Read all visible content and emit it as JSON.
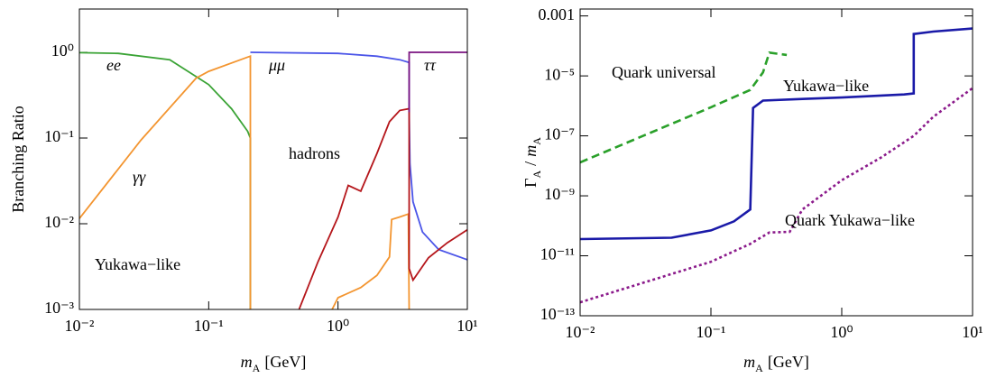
{
  "chart_data": [
    {
      "type": "line",
      "log_x": true,
      "log_y": true,
      "ylabel": "Branching Ratio",
      "xlabel": [
        "m",
        "A",
        "[GeV]"
      ],
      "annotation": "Yukawa−like",
      "xlim": [
        0.01,
        10
      ],
      "ylim": [
        0.001,
        3.2
      ],
      "xticks": [
        {
          "value": 0.01,
          "label": "10⁻²"
        },
        {
          "value": 0.1,
          "label": "10⁻¹"
        },
        {
          "value": 1,
          "label": "10⁰"
        },
        {
          "value": 10,
          "label": "10¹"
        }
      ],
      "yticks": [
        {
          "value": 0.001,
          "label": "10⁻³"
        },
        {
          "value": 0.01,
          "label": "10⁻²"
        },
        {
          "value": 0.1,
          "label": "10⁻¹"
        },
        {
          "value": 1,
          "label": "10⁰"
        }
      ],
      "series": [
        {
          "name": "ee",
          "color": "#3aa335",
          "style": "solid",
          "x": [
            0.01,
            0.02,
            0.05,
            0.1,
            0.15,
            0.2,
            0.21,
            0.21
          ],
          "values": [
            0.99,
            0.97,
            0.82,
            0.42,
            0.22,
            0.12,
            0.1,
            0.001
          ]
        },
        {
          "name": "γγ",
          "color": "#f39530",
          "style": "solid",
          "x": [
            0.01,
            0.03,
            0.08,
            0.1,
            0.2,
            0.21,
            0.21,
            0.5,
            0.9,
            1.0,
            1.5,
            2.0,
            2.5,
            2.6,
            3.0,
            3.5,
            3.55
          ],
          "values": [
            0.0115,
            0.095,
            0.5,
            0.6,
            0.88,
            0.9,
            0.001,
            null,
            0.001,
            0.00137,
            0.0018,
            0.0025,
            0.0041,
            0.0112,
            0.012,
            0.013,
            0.001
          ]
        },
        {
          "name": "μμ",
          "color": "#4b55e8",
          "style": "solid",
          "x": [
            0.21,
            1,
            2,
            3,
            3.55,
            3.55,
            3.6,
            3.8,
            4.5,
            6,
            10
          ],
          "values": [
            1,
            0.97,
            0.9,
            0.82,
            0.76,
            0.2,
            0.05,
            0.018,
            0.008,
            0.005,
            0.0038
          ]
        },
        {
          "name": "hadrons",
          "color": "#b5161b",
          "style": "solid",
          "x": [
            0.5,
            0.7,
            1,
            1.2,
            1.5,
            2,
            2.5,
            3,
            3.55,
            3.55,
            3.8,
            5,
            7,
            10
          ],
          "values": [
            0.001,
            0.0036,
            0.012,
            0.028,
            0.024,
            0.066,
            0.155,
            0.21,
            0.22,
            0.003,
            0.0022,
            0.004,
            0.006,
            0.0085
          ]
        },
        {
          "name": "ττ",
          "color": "#7b1480",
          "style": "solid",
          "x": [
            3.55,
            3.55,
            10
          ],
          "values": [
            0.2,
            1,
            1
          ]
        }
      ]
    },
    {
      "type": "line",
      "log_x": true,
      "log_y": true,
      "ylabel": [
        "Γ",
        "A",
        "/",
        "m",
        "A"
      ],
      "xlabel": [
        "m",
        "A",
        "[GeV]"
      ],
      "xlim": [
        0.01,
        10
      ],
      "ylim": [
        1e-13,
        0.0017
      ],
      "xticks": [
        {
          "value": 0.01,
          "label": "10⁻²"
        },
        {
          "value": 0.1,
          "label": "10⁻¹"
        },
        {
          "value": 1,
          "label": "10⁰"
        },
        {
          "value": 10,
          "label": "10¹"
        }
      ],
      "yticks": [
        {
          "value": 1e-13,
          "label": "10⁻¹³"
        },
        {
          "value": 1e-11,
          "label": "10⁻¹¹"
        },
        {
          "value": 1e-09,
          "label": "10⁻⁹"
        },
        {
          "value": 1e-07,
          "label": "10⁻⁷"
        },
        {
          "value": 1e-05,
          "label": "10⁻⁵"
        },
        0.001
      ],
      "series": [
        {
          "name": "Quark universal",
          "color": "#2aa02a",
          "style": "dashed",
          "x": [
            0.01,
            0.1,
            0.2,
            0.25,
            0.28,
            0.32,
            0.38
          ],
          "values": [
            1.3e-08,
            9e-07,
            3.4e-06,
            1.3e-05,
            6e-05,
            5.5e-05,
            5e-05
          ]
        },
        {
          "name": "Yukawa−like",
          "color": "#1a1aa8",
          "style": "solid",
          "x": [
            0.01,
            0.05,
            0.1,
            0.15,
            0.2,
            0.21,
            0.25,
            0.5,
            1,
            3,
            3.55,
            3.55,
            5,
            10
          ],
          "values": [
            3.6e-11,
            4e-11,
            7e-11,
            1.4e-10,
            3.5e-10,
            8.5e-07,
            1.5e-06,
            1.7e-06,
            1.9e-06,
            2.4e-06,
            2.6e-06,
            0.00025,
            0.0003,
            0.00038
          ]
        },
        {
          "name": "Quark Yukawa−like",
          "color": "#8b1a8b",
          "style": "dotted",
          "x": [
            0.01,
            0.1,
            0.2,
            0.28,
            0.4,
            0.5,
            1,
            2,
            3.55,
            5,
            10
          ],
          "values": [
            2.8e-13,
            6.3e-12,
            2.5e-11,
            6e-11,
            6.3e-11,
            3.5e-10,
            3.3e-09,
            1.9e-08,
            1e-07,
            4.3e-07,
            3.9e-06
          ]
        }
      ]
    }
  ]
}
